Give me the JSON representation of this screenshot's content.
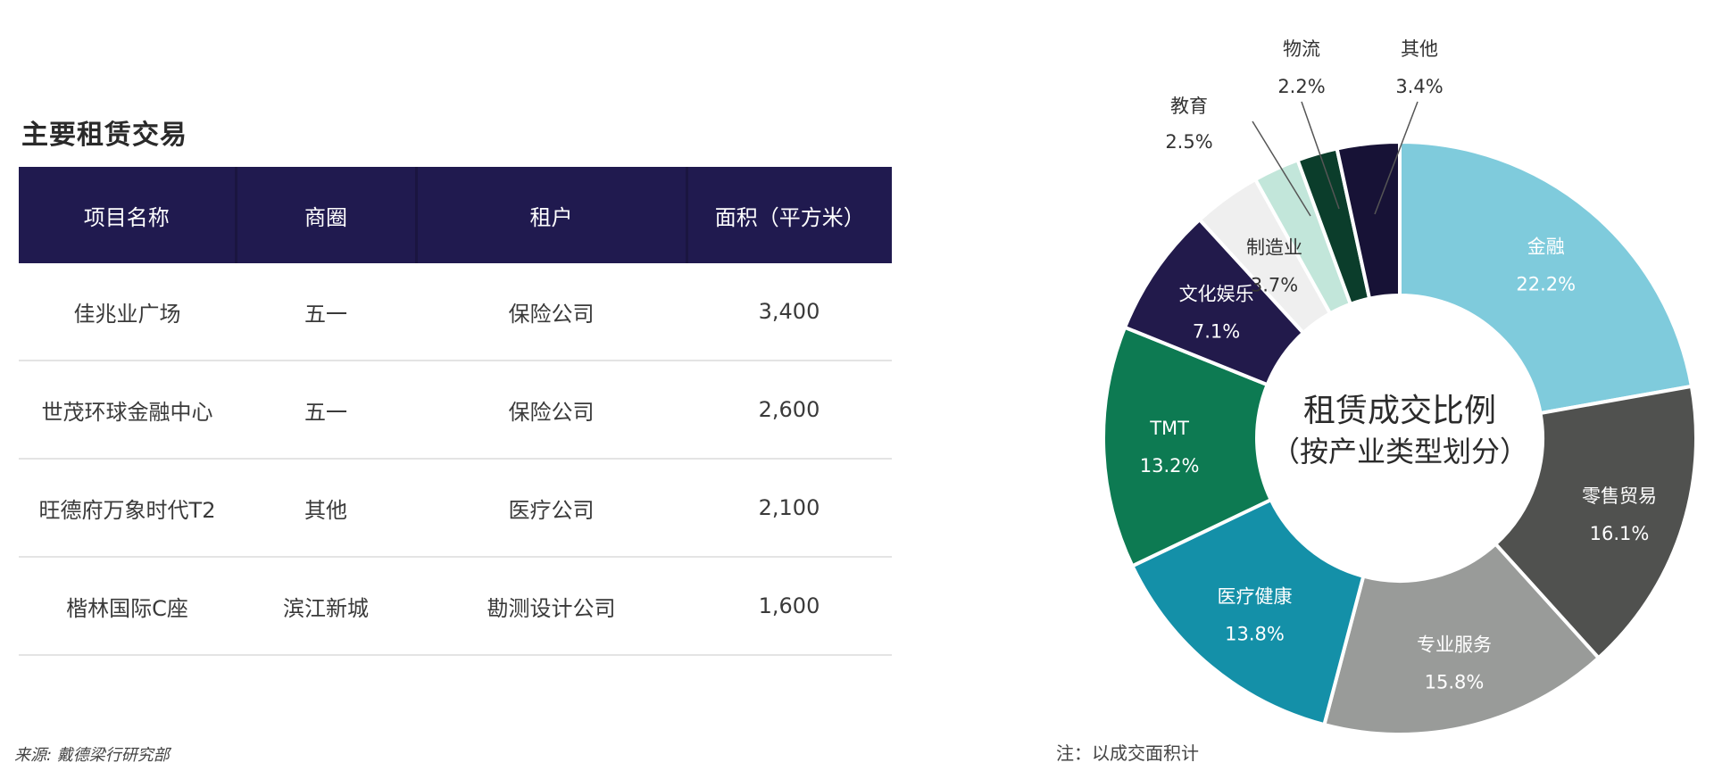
{
  "table_section": {
    "title": "主要租赁交易",
    "headers": [
      "项目名称",
      "商圈",
      "租户",
      "面积（平方米）"
    ],
    "rows": [
      [
        "佳兆业广场",
        "五一",
        "保险公司",
        "3,400"
      ],
      [
        "世茂环球金融中心",
        "五一",
        "保险公司",
        "2,600"
      ],
      [
        "旺德府万象时代T2",
        "其他",
        "医疗公司",
        "2,100"
      ],
      [
        "楷林国际C座",
        "滨江新城",
        "勘测设计公司",
        "1,600"
      ]
    ],
    "source": "来源: 戴德梁行研究部"
  },
  "chart_note": "注：以成交面积计",
  "chart_data": {
    "type": "pie",
    "donut": true,
    "center_text": [
      "租赁成交比例",
      "（按产业类型划分）"
    ],
    "label_color_light": "#ffffff",
    "label_color_dark": "#333333",
    "slices": [
      {
        "name": "金融",
        "value": 22.2,
        "label": "22.2%",
        "color": "#7fcbdc"
      },
      {
        "name": "零售贸易",
        "value": 16.1,
        "label": "16.1%",
        "color": "#50514f"
      },
      {
        "name": "专业服务",
        "value": 15.8,
        "label": "15.8%",
        "color": "#999b99"
      },
      {
        "name": "医疗健康",
        "value": 13.8,
        "label": "13.8%",
        "color": "#1490a8"
      },
      {
        "name": "TMT",
        "value": 13.2,
        "label": "13.2%",
        "color": "#0d7a52"
      },
      {
        "name": "文化娱乐",
        "value": 7.1,
        "label": "7.1%",
        "color": "#221a4b"
      },
      {
        "name": "制造业",
        "value": 3.7,
        "label": "3.7%",
        "color": "#efefef"
      },
      {
        "name": "教育",
        "value": 2.5,
        "label": "2.5%",
        "color": "#c2e6da"
      },
      {
        "name": "物流",
        "value": 2.2,
        "label": "2.2%",
        "color": "#0b3d2b"
      },
      {
        "name": "其他",
        "value": 3.4,
        "label": "3.4%",
        "color": "#171236"
      }
    ]
  }
}
